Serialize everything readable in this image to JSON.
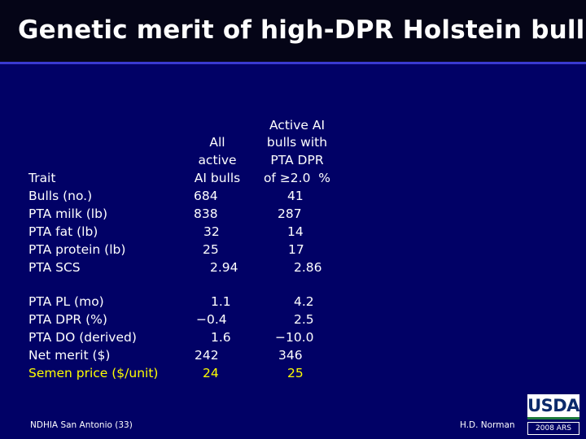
{
  "slide": {
    "title": "Genetic merit of high-DPR Holstein bulls"
  },
  "table": {
    "headers": {
      "trait": "Trait",
      "all_line1": "All",
      "all_line2": "active",
      "all_line3": "AI bulls",
      "hi_line1": "Active AI",
      "hi_line2": "bulls with",
      "hi_line3": "PTA DPR",
      "hi_line4": "of ≥2.0  %"
    },
    "rows": [
      {
        "trait": "Bulls (no.)",
        "all": "684",
        "high": "41"
      },
      {
        "trait": "PTA milk (lb)",
        "all": "838",
        "high": "287"
      },
      {
        "trait": "PTA fat (lb)",
        "all": "32",
        "high": "14"
      },
      {
        "trait": "PTA protein (lb)",
        "all": "25",
        "high": "17"
      },
      {
        "trait": "PTA SCS",
        "all": "2.94",
        "high": "2.86"
      },
      {
        "trait": "PTA PL (mo)",
        "all": "1.1",
        "high": "4.2"
      },
      {
        "trait": "PTA DPR (%)",
        "all": "−0.4",
        "high": "2.5"
      },
      {
        "trait": "PTA DO (derived)",
        "all": "1.6",
        "high": "−10.0"
      },
      {
        "trait": "Net merit ($)",
        "all": "242",
        "high": "346"
      },
      {
        "trait": "Semen price ($/unit)",
        "all": "24",
        "high": "25"
      }
    ]
  },
  "footer": {
    "left": "NDHIA San Antonio (33)",
    "right": "H.D. Norman",
    "logo_text": "USDA",
    "logo_badge": "2008 ARS"
  },
  "colors": {
    "background": "#010166",
    "title_bar": "#050517",
    "highlight": "#ffff00"
  }
}
